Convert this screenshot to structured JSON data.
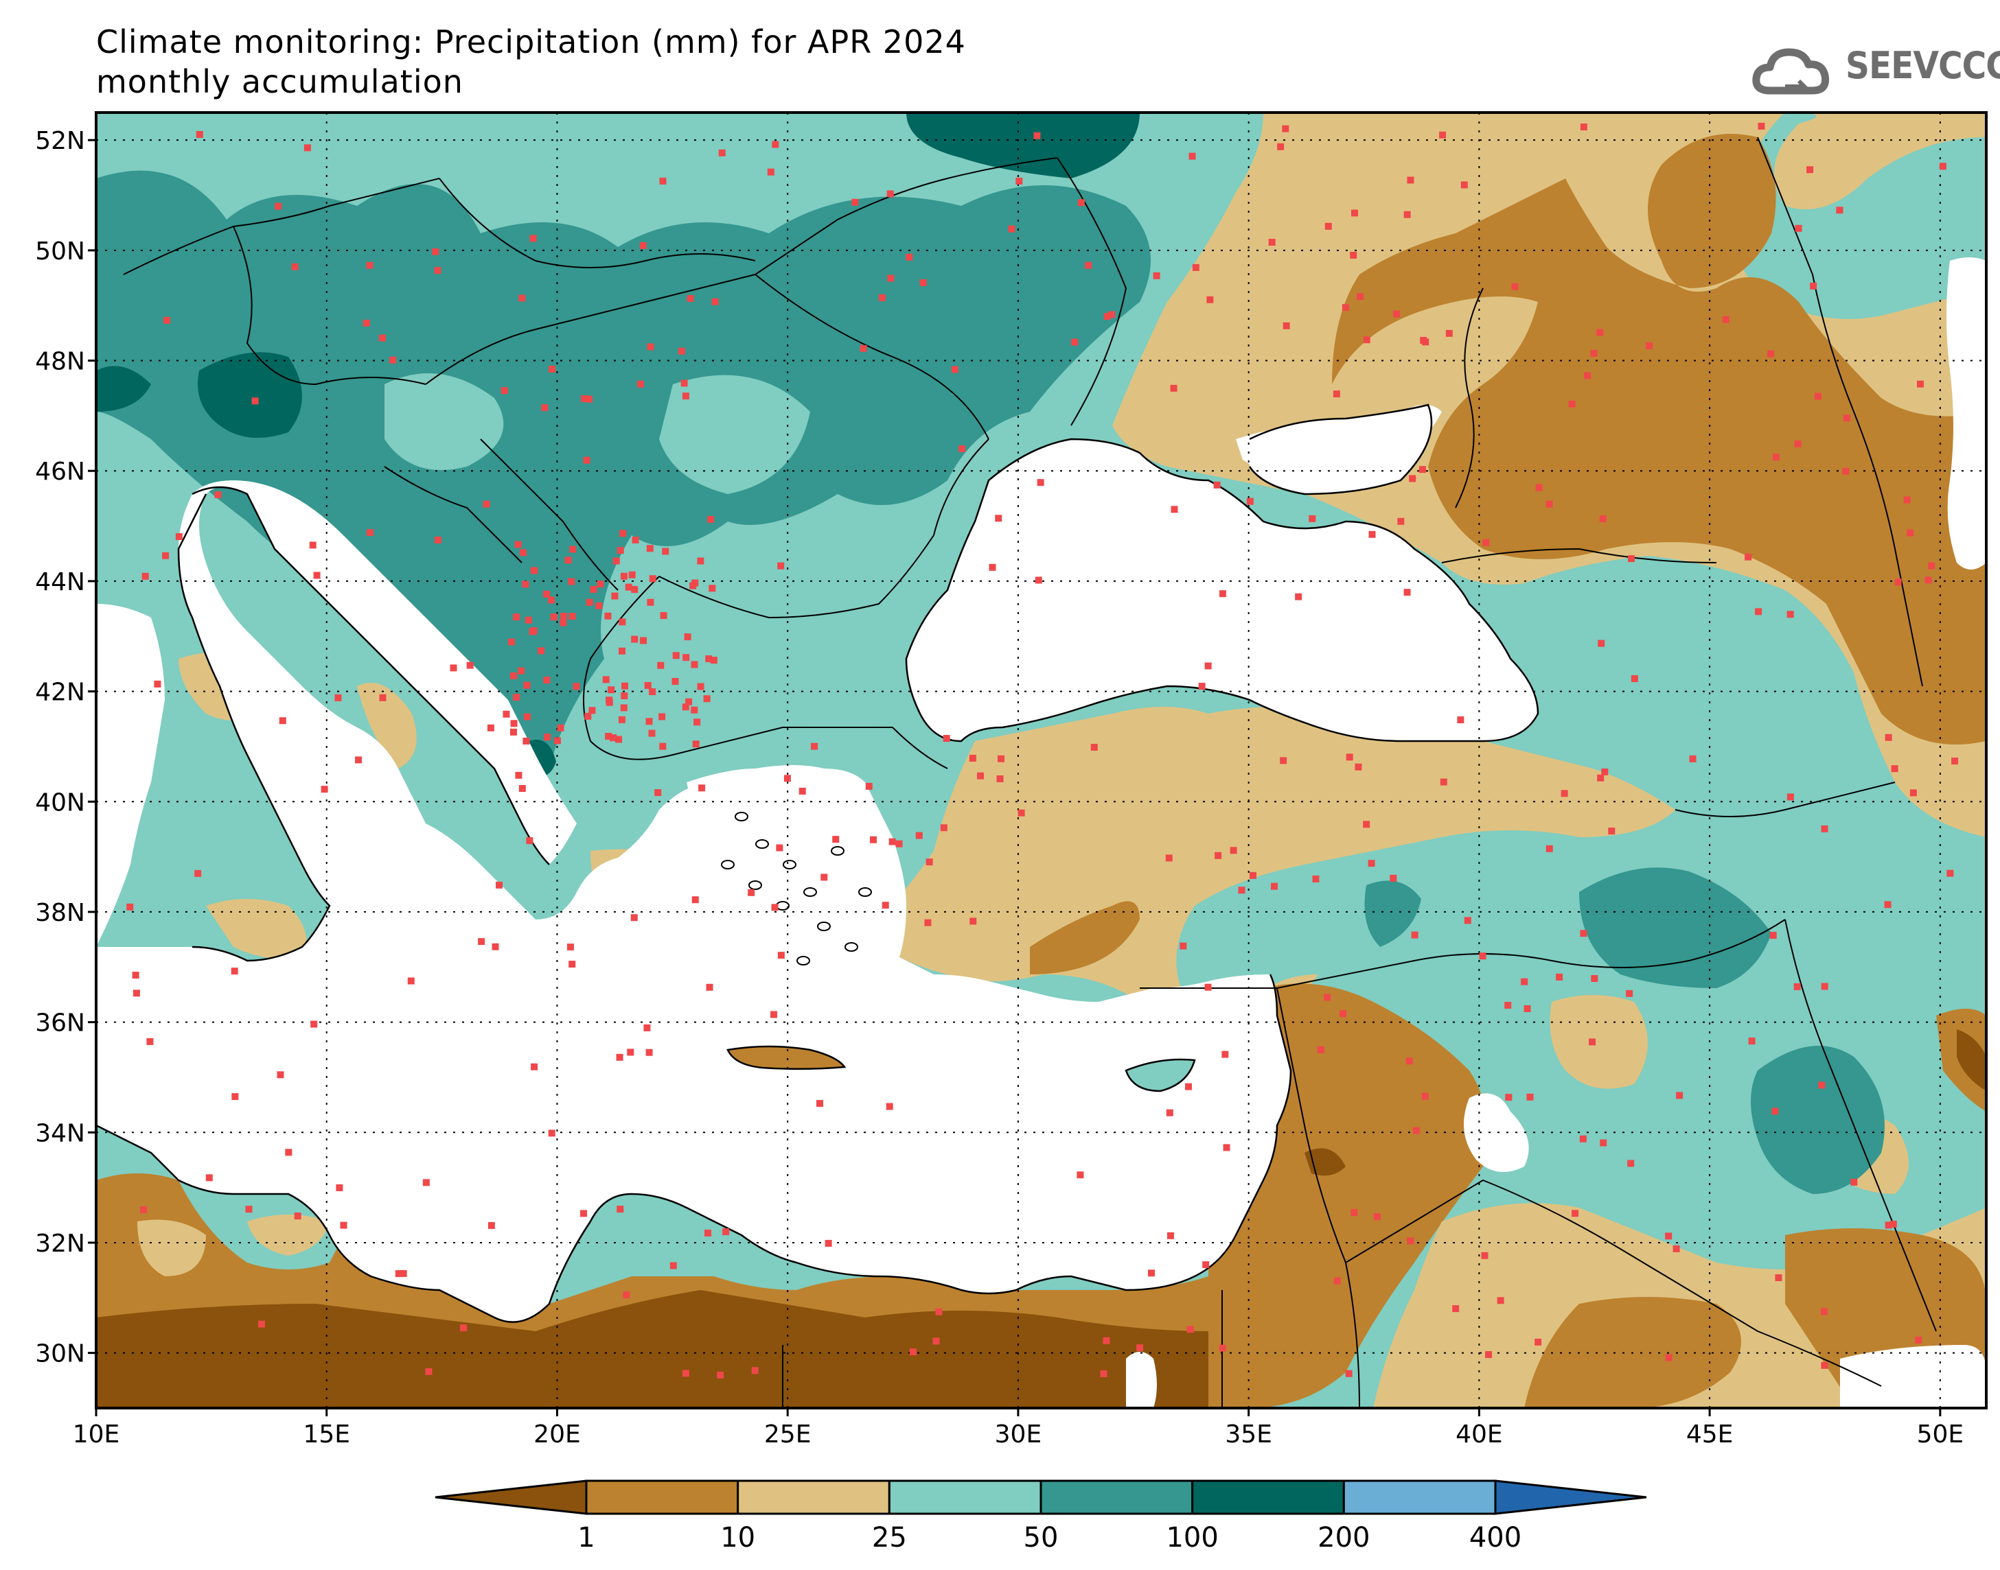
{
  "title": {
    "line1": "Climate monitoring: Precipitation (mm) for APR 2024",
    "line2": "monthly accumulation"
  },
  "logo": {
    "text": "SEEVCCC",
    "icon": "cloud-icon",
    "color": "#6e6e6e"
  },
  "map": {
    "lon_range": [
      10,
      51
    ],
    "lat_range": [
      29,
      52.5
    ],
    "lat_ticks": [
      "30N",
      "32N",
      "34N",
      "36N",
      "38N",
      "40N",
      "42N",
      "44N",
      "46N",
      "48N",
      "50N",
      "52N"
    ],
    "lat_values": [
      30,
      32,
      34,
      36,
      38,
      40,
      42,
      44,
      46,
      48,
      50,
      52
    ],
    "lon_ticks": [
      "10E",
      "15E",
      "20E",
      "25E",
      "30E",
      "35E",
      "40E",
      "45E",
      "50E"
    ],
    "lon_values": [
      10,
      15,
      20,
      25,
      30,
      35,
      40,
      45,
      50
    ],
    "grid": "dotted",
    "station_color": "#f0474a"
  },
  "colorbar": {
    "labels": [
      "1",
      "10",
      "25",
      "50",
      "100",
      "200",
      "400"
    ],
    "colors": [
      "#8a520c",
      "#bd822f",
      "#dfc281",
      "#80cdc1",
      "#35978f",
      "#01665e",
      "#6aaed6",
      "#2166ac"
    ]
  }
}
